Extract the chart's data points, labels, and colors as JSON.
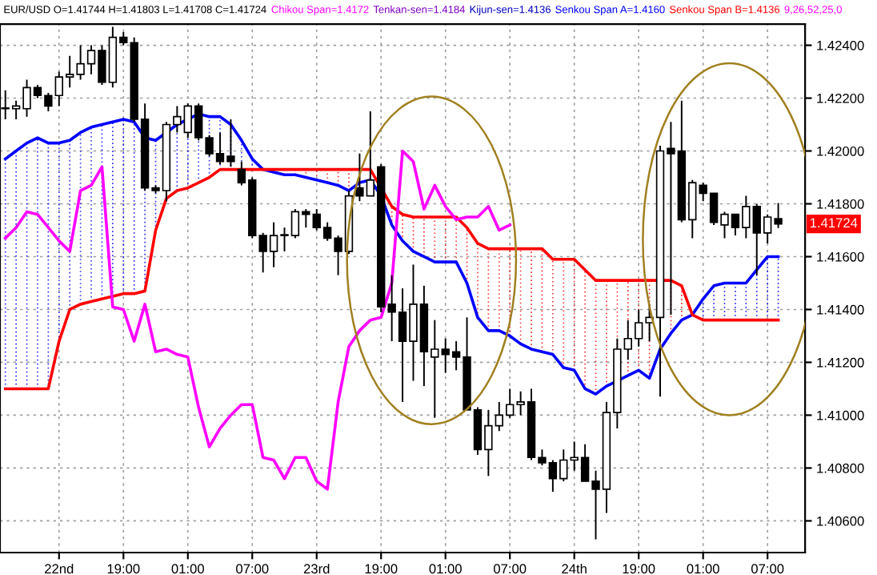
{
  "chart_data": {
    "type": "candlestick",
    "title": "EUR/USD O=1.41744 H=1.41803 L=1.41708 C=1.41724",
    "annotations": [
      "Chikou Span=1.4172",
      "Tenkan-sen=1.4184",
      "Kijun-sen=1.4136",
      "Senkou Span A=1.4160",
      "Senkou Span B=1.4136",
      "9,26,52,25,0",
      {
        "text": "1.41724",
        "y": 1.41724
      }
    ],
    "categories": [
      null,
      null,
      null,
      null,
      null,
      "22nd",
      null,
      null,
      null,
      null,
      null,
      "19:00",
      null,
      null,
      null,
      null,
      null,
      "01:00",
      null,
      null,
      null,
      null,
      null,
      "07:00",
      null,
      null,
      null,
      null,
      null,
      "23rd",
      null,
      null,
      null,
      null,
      null,
      "19:00",
      null,
      null,
      null,
      null,
      null,
      "01:00",
      null,
      null,
      null,
      null,
      null,
      "07:00",
      null,
      null,
      null,
      null,
      null,
      "24th",
      null,
      null,
      null,
      null,
      null,
      "19:00",
      null,
      null,
      null,
      null,
      null,
      "01:00",
      null,
      null,
      null,
      null,
      null,
      "07:00",
      null,
      null,
      null
    ],
    "ohlc": [
      [
        1.4216,
        1.4223,
        1.4212,
        1.4216
      ],
      [
        1.4216,
        1.4219,
        1.4212,
        1.4217
      ],
      [
        1.4216,
        1.4227,
        1.4213,
        1.4224
      ],
      [
        1.4224,
        1.4225,
        1.422,
        1.4221
      ],
      [
        1.4221,
        1.4222,
        1.4215,
        1.4217
      ],
      [
        1.4221,
        1.423,
        1.4217,
        1.4228
      ],
      [
        1.4228,
        1.4236,
        1.4224,
        1.4229
      ],
      [
        1.4229,
        1.424,
        1.4227,
        1.4233
      ],
      [
        1.4233,
        1.424,
        1.4229,
        1.4238
      ],
      [
        1.4238,
        1.424,
        1.4225,
        1.4226
      ],
      [
        1.4226,
        1.4247,
        1.4224,
        1.4243
      ],
      [
        1.4243,
        1.4245,
        1.424,
        1.4241
      ],
      [
        1.4241,
        1.4243,
        1.4211,
        1.4212
      ],
      [
        1.4212,
        1.4218,
        1.4185,
        1.4186
      ],
      [
        1.4186,
        1.4187,
        1.4184,
        1.4185
      ],
      [
        1.4185,
        1.4211,
        1.4181,
        1.421
      ],
      [
        1.421,
        1.4217,
        1.4207,
        1.4213
      ],
      [
        1.4207,
        1.4218,
        1.4205,
        1.4217
      ],
      [
        1.4217,
        1.4218,
        1.4204,
        1.4205
      ],
      [
        1.4205,
        1.4206,
        1.4198,
        1.4199
      ],
      [
        1.4199,
        1.4207,
        1.4195,
        1.4196
      ],
      [
        1.4198,
        1.4212,
        1.4194,
        1.4196
      ],
      [
        1.4193,
        1.4196,
        1.4187,
        1.4188
      ],
      [
        1.4189,
        1.419,
        1.4167,
        1.4168
      ],
      [
        1.4168,
        1.4169,
        1.4154,
        1.4162
      ],
      [
        1.4162,
        1.4173,
        1.4156,
        1.4168
      ],
      [
        1.4168,
        1.4171,
        1.4162,
        1.4168
      ],
      [
        1.4168,
        1.4178,
        1.4167,
        1.4177
      ],
      [
        1.4177,
        1.4178,
        1.4171,
        1.4176
      ],
      [
        1.4176,
        1.4178,
        1.417,
        1.4171
      ],
      [
        1.4171,
        1.4173,
        1.4166,
        1.4167
      ],
      [
        1.4167,
        1.4168,
        1.4153,
        1.4162
      ],
      [
        1.4162,
        1.4185,
        1.4161,
        1.4183
      ],
      [
        1.4186,
        1.4199,
        1.4181,
        1.4183
      ],
      [
        1.4183,
        1.4215,
        1.4183,
        1.4189
      ],
      [
        1.4194,
        1.4195,
        1.4139,
        1.4141
      ],
      [
        1.4142,
        1.4153,
        1.4128,
        1.4139
      ],
      [
        1.4139,
        1.4148,
        1.4105,
        1.4128
      ],
      [
        1.4128,
        1.4157,
        1.4113,
        1.4142
      ],
      [
        1.4142,
        1.4149,
        1.4111,
        1.4124
      ],
      [
        1.4122,
        1.4136,
        1.4099,
        1.4125
      ],
      [
        1.4125,
        1.4129,
        1.4116,
        1.4123
      ],
      [
        1.4124,
        1.4128,
        1.4117,
        1.4122
      ],
      [
        1.4122,
        1.4137,
        1.4102,
        1.4102
      ],
      [
        1.4102,
        1.4103,
        1.4085,
        1.4087
      ],
      [
        1.4087,
        1.4102,
        1.4077,
        1.4096
      ],
      [
        1.4096,
        1.4105,
        1.4094,
        1.41
      ],
      [
        1.41,
        1.411,
        1.4099,
        1.4104
      ],
      [
        1.4104,
        1.4109,
        1.41,
        1.4105
      ],
      [
        1.4105,
        1.411,
        1.4083,
        1.4084
      ],
      [
        1.4084,
        1.4087,
        1.4081,
        1.4082
      ],
      [
        1.4082,
        1.4083,
        1.4071,
        1.4076
      ],
      [
        1.4076,
        1.4087,
        1.4075,
        1.4083
      ],
      [
        1.4083,
        1.409,
        1.4079,
        1.4084
      ],
      [
        1.4084,
        1.4089,
        1.4075,
        1.4075
      ],
      [
        1.4075,
        1.4079,
        1.4053,
        1.4072
      ],
      [
        1.4072,
        1.4105,
        1.4063,
        1.4101
      ],
      [
        1.4101,
        1.4129,
        1.4095,
        1.4125
      ],
      [
        1.4125,
        1.4136,
        1.4121,
        1.4129
      ],
      [
        1.4129,
        1.414,
        1.4126,
        1.4135
      ],
      [
        1.4135,
        1.4142,
        1.4128,
        1.4137
      ],
      [
        1.4137,
        1.4202,
        1.4107,
        1.42
      ],
      [
        1.4201,
        1.4211,
        1.4138,
        1.4199
      ],
      [
        1.42,
        1.4219,
        1.4173,
        1.4174
      ],
      [
        1.4174,
        1.4189,
        1.4167,
        1.4188
      ],
      [
        1.4187,
        1.4188,
        1.4181,
        1.4184
      ],
      [
        1.4184,
        1.4184,
        1.4172,
        1.4173
      ],
      [
        1.4172,
        1.4177,
        1.4167,
        1.4176
      ],
      [
        1.4176,
        1.4176,
        1.4168,
        1.4171
      ],
      [
        1.4171,
        1.4183,
        1.4167,
        1.4179
      ],
      [
        1.4179,
        1.418,
        1.4153,
        1.4169
      ],
      [
        1.4169,
        1.4176,
        1.4165,
        1.4175
      ],
      [
        1.41744,
        1.41803,
        1.41708,
        1.41724
      ],
      null,
      null
    ],
    "series": [
      {
        "type": "line",
        "color": "#0000ff",
        "values": [
          1.4197,
          1.42,
          1.4203,
          1.4205,
          1.4203,
          1.4203,
          1.4204,
          1.4207,
          1.4209,
          1.421,
          1.4211,
          1.4212,
          1.4211,
          1.4205,
          1.4204,
          1.4207,
          1.421,
          1.4212,
          1.4214,
          1.4213,
          1.4213,
          1.421,
          1.4204,
          1.4197,
          1.4193,
          1.4192,
          1.4191,
          1.4191,
          1.419,
          1.4189,
          1.4188,
          1.4187,
          1.4185,
          1.4188,
          1.4189,
          1.4183,
          1.4172,
          1.4166,
          1.4162,
          1.416,
          1.4158,
          1.4158,
          1.4158,
          1.415,
          1.4137,
          1.4132,
          1.4132,
          1.413,
          1.4127,
          1.4125,
          1.4124,
          1.4123,
          1.4118,
          1.4117,
          1.411,
          1.4108,
          1.4111,
          1.4113,
          1.4115,
          1.4117,
          1.4114,
          1.4125,
          1.4131,
          1.4136,
          1.4138,
          1.4144,
          1.4149,
          1.415,
          1.415,
          1.415,
          1.4155,
          1.416,
          1.416,
          null,
          null
        ]
      },
      {
        "type": "line",
        "color": "#ff0000",
        "values": [
          1.411,
          1.411,
          1.411,
          1.411,
          1.411,
          1.4128,
          1.414,
          1.4142,
          1.4143,
          1.4144,
          1.4145,
          1.4146,
          1.4146,
          1.4147,
          1.417,
          1.4182,
          1.4185,
          1.4186,
          1.4188,
          1.419,
          1.4193,
          1.4193,
          1.4193,
          1.4193,
          1.4193,
          1.4193,
          1.4193,
          1.4193,
          1.4193,
          1.4193,
          1.4193,
          1.4193,
          1.4193,
          1.4193,
          1.4193,
          1.4186,
          1.4179,
          1.4176,
          1.4175,
          1.4175,
          1.4175,
          1.4175,
          1.4175,
          1.4171,
          1.4165,
          1.4163,
          1.4163,
          1.4163,
          1.4163,
          1.4163,
          1.4163,
          1.4159,
          1.4159,
          1.4159,
          1.4155,
          1.4151,
          1.4151,
          1.4151,
          1.4151,
          1.4151,
          1.4151,
          1.4151,
          1.4151,
          1.4149,
          1.4138,
          1.4136,
          1.4136,
          1.4136,
          1.4136,
          1.4136,
          1.4136,
          1.4136,
          1.4136,
          null,
          null
        ]
      },
      {
        "type": "line",
        "color": "#ff00ff",
        "values": [
          1.4167,
          1.4171,
          1.4177,
          1.4176,
          1.4171,
          1.4166,
          1.4162,
          1.4185,
          1.4187,
          1.4194,
          1.4141,
          1.414,
          1.4128,
          1.4142,
          1.4124,
          1.4125,
          1.4123,
          1.4122,
          1.4103,
          1.4088,
          1.4095,
          1.41,
          1.4104,
          1.4104,
          1.4084,
          1.4083,
          1.4076,
          1.4084,
          1.4084,
          1.4075,
          1.4072,
          1.4105,
          1.4126,
          1.4132,
          1.4136,
          1.4137,
          1.415,
          1.42,
          1.4196,
          1.4178,
          1.4187,
          1.4179,
          1.4174,
          1.4175,
          1.4175,
          1.4179,
          1.417,
          1.4172,
          null,
          null,
          null,
          null,
          null,
          null,
          null,
          null,
          null,
          null,
          null,
          null,
          null,
          null,
          null,
          null,
          null,
          null,
          null,
          null,
          null,
          null,
          null,
          null,
          null,
          null,
          null
        ]
      }
    ],
    "ylim": [
      1.4048,
      1.4248
    ],
    "yticks": [
      {
        "value": 1.406,
        "label": "1.40600"
      },
      {
        "value": 1.408,
        "label": "1.40800"
      },
      {
        "value": 1.41,
        "label": "1.41000"
      },
      {
        "value": 1.412,
        "label": "1.41200"
      },
      {
        "value": 1.414,
        "label": "1.41400"
      },
      {
        "value": 1.416,
        "label": "1.41600"
      },
      {
        "value": 1.418,
        "label": "1.41800"
      },
      {
        "value": 1.42,
        "label": "1.42000"
      },
      {
        "value": 1.422,
        "label": "1.42200"
      },
      {
        "value": 1.424,
        "label": "1.42400"
      }
    ],
    "grid": true,
    "legend": false
  }
}
